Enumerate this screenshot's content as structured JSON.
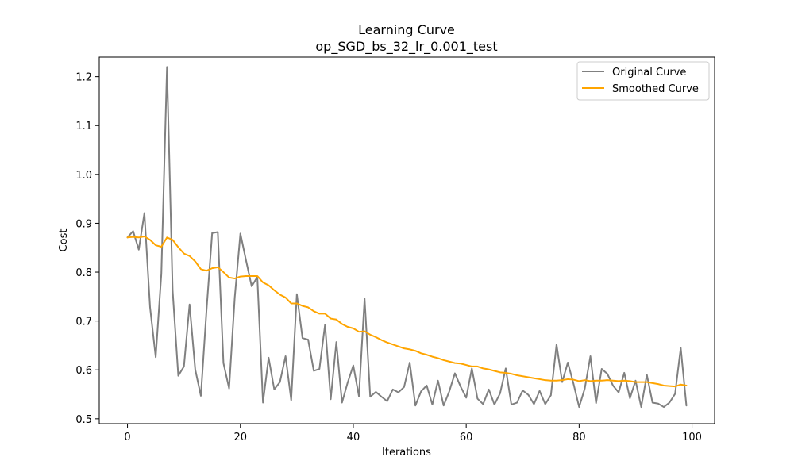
{
  "chart_data": {
    "type": "line",
    "title": "Learning Curve",
    "subtitle": "op_SGD_bs_32_lr_0.001_test",
    "xlabel": "Iterations",
    "ylabel": "Cost",
    "xlim": [
      -5,
      104
    ],
    "ylim": [
      0.49,
      1.24
    ],
    "xticks": [
      0,
      20,
      40,
      60,
      80,
      100
    ],
    "yticks": [
      0.5,
      0.6,
      0.7,
      0.8,
      0.9,
      1.0,
      1.1,
      1.2
    ],
    "xtick_labels": [
      "0",
      "20",
      "40",
      "60",
      "80",
      "100"
    ],
    "ytick_labels": [
      "0.5",
      "0.6",
      "0.7",
      "0.8",
      "0.9",
      "1.0",
      "1.1",
      "1.2"
    ],
    "grid": false,
    "legend_position": "top-right",
    "series": [
      {
        "name": "Original Curve",
        "color": "#808080",
        "values": [
          0.871,
          0.884,
          0.846,
          0.921,
          0.728,
          0.626,
          0.797,
          1.22,
          0.762,
          0.588,
          0.607,
          0.734,
          0.601,
          0.547,
          0.722,
          0.88,
          0.882,
          0.614,
          0.562,
          0.748,
          0.879,
          0.824,
          0.771,
          0.79,
          0.533,
          0.625,
          0.56,
          0.575,
          0.628,
          0.538,
          0.755,
          0.665,
          0.662,
          0.598,
          0.602,
          0.693,
          0.54,
          0.657,
          0.533,
          0.574,
          0.609,
          0.546,
          0.746,
          0.545,
          0.555,
          0.545,
          0.536,
          0.56,
          0.554,
          0.565,
          0.615,
          0.527,
          0.556,
          0.568,
          0.529,
          0.578,
          0.527,
          0.556,
          0.593,
          0.566,
          0.543,
          0.603,
          0.541,
          0.53,
          0.56,
          0.529,
          0.552,
          0.603,
          0.529,
          0.533,
          0.558,
          0.549,
          0.53,
          0.557,
          0.53,
          0.548,
          0.652,
          0.575,
          0.615,
          0.572,
          0.524,
          0.562,
          0.628,
          0.532,
          0.602,
          0.592,
          0.568,
          0.554,
          0.594,
          0.542,
          0.578,
          0.524,
          0.59,
          0.533,
          0.531,
          0.524,
          0.533,
          0.551,
          0.645,
          0.527
        ]
      },
      {
        "name": "Smoothed Curve",
        "color": "#ffa500",
        "values": [
          0.871,
          0.872,
          0.871,
          0.873,
          0.866,
          0.855,
          0.852,
          0.871,
          0.866,
          0.851,
          0.838,
          0.833,
          0.822,
          0.806,
          0.803,
          0.808,
          0.81,
          0.8,
          0.789,
          0.787,
          0.791,
          0.792,
          0.792,
          0.792,
          0.779,
          0.773,
          0.763,
          0.754,
          0.748,
          0.736,
          0.736,
          0.731,
          0.728,
          0.72,
          0.715,
          0.715,
          0.705,
          0.703,
          0.694,
          0.688,
          0.685,
          0.678,
          0.679,
          0.672,
          0.667,
          0.661,
          0.656,
          0.652,
          0.648,
          0.644,
          0.642,
          0.639,
          0.634,
          0.631,
          0.627,
          0.624,
          0.62,
          0.617,
          0.614,
          0.613,
          0.61,
          0.607,
          0.607,
          0.603,
          0.601,
          0.598,
          0.595,
          0.594,
          0.592,
          0.589,
          0.587,
          0.585,
          0.583,
          0.581,
          0.579,
          0.578,
          0.578,
          0.579,
          0.581,
          0.58,
          0.577,
          0.579,
          0.577,
          0.578,
          0.578,
          0.579,
          0.578,
          0.577,
          0.578,
          0.577,
          0.575,
          0.575,
          0.575,
          0.573,
          0.571,
          0.568,
          0.567,
          0.566,
          0.57,
          0.568
        ]
      }
    ]
  }
}
